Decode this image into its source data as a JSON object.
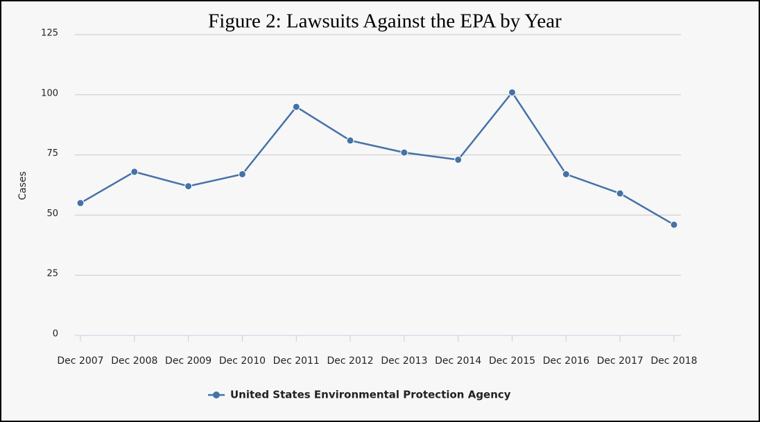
{
  "chart_data": {
    "type": "line",
    "title": "Figure 2: Lawsuits Against the EPA by Year",
    "y_label": "Cases",
    "categories": [
      "Dec 2007",
      "Dec 2008",
      "Dec 2009",
      "Dec 2010",
      "Dec 2011",
      "Dec 2012",
      "Dec 2013",
      "Dec 2014",
      "Dec 2015",
      "Dec 2016",
      "Dec 2017",
      "Dec 2018"
    ],
    "series": [
      {
        "name": "United States Environmental Protection Agency",
        "color": "#4572a7",
        "values": [
          55,
          68,
          62,
          67,
          95,
          81,
          76,
          73,
          101,
          67,
          59,
          46
        ]
      }
    ],
    "ylim": [
      0,
      125
    ],
    "yticks": [
      0,
      25,
      50,
      75,
      100,
      125
    ],
    "grid": true,
    "legend": "bottom"
  }
}
